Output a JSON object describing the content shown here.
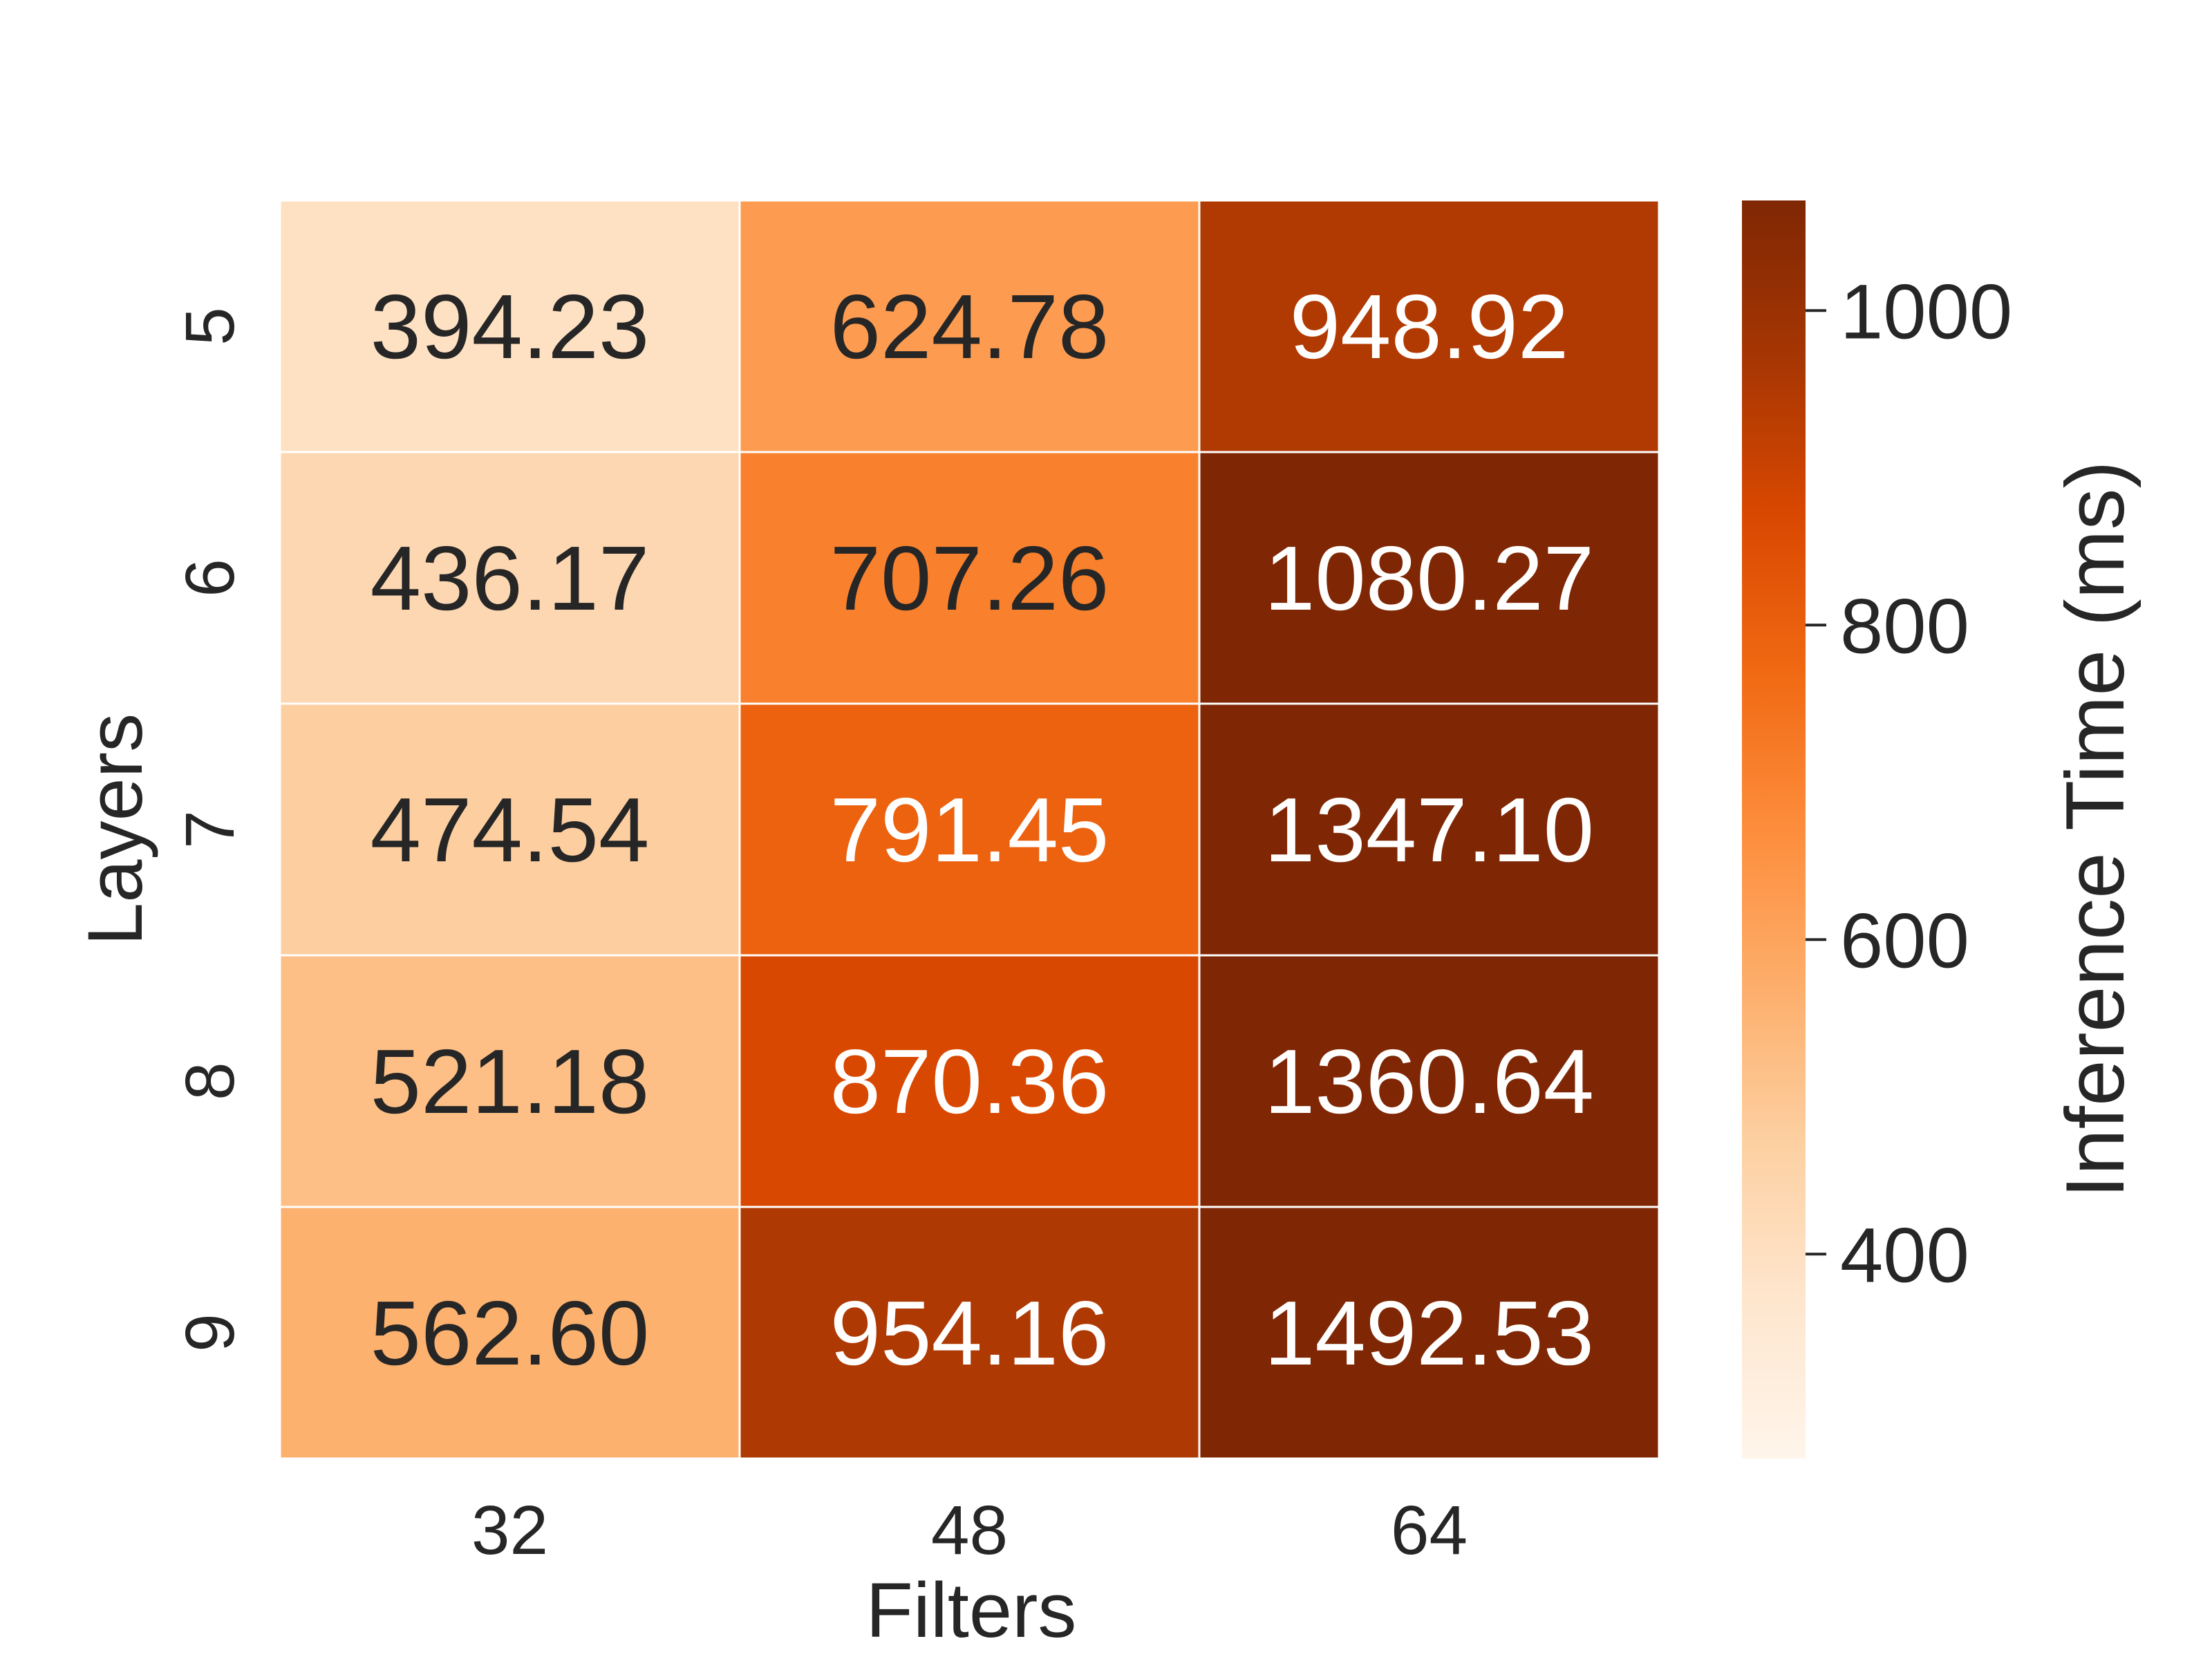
{
  "chart_data": {
    "type": "heatmap",
    "title": "",
    "xlabel": "Filters",
    "ylabel": "Layers",
    "x_categories": [
      "32",
      "48",
      "64"
    ],
    "y_categories": [
      "5",
      "6",
      "7",
      "8",
      "9"
    ],
    "values": [
      [
        394.23,
        624.78,
        948.92
      ],
      [
        436.17,
        707.26,
        1080.27
      ],
      [
        474.54,
        791.45,
        1347.1
      ],
      [
        521.18,
        870.36,
        1360.64
      ],
      [
        562.6,
        954.16,
        1492.53
      ]
    ],
    "value_labels": [
      [
        "394.23",
        "624.78",
        "948.92"
      ],
      [
        "436.17",
        "707.26",
        "1080.27"
      ],
      [
        "474.54",
        "791.45",
        "1347.10"
      ],
      [
        "521.18",
        "870.36",
        "1360.64"
      ],
      [
        "562.60",
        "954.16",
        "1492.53"
      ]
    ],
    "colorbar": {
      "label": "Inference Time (ms)",
      "range": [
        270,
        1070
      ],
      "ticks": [
        400,
        600,
        800,
        1000
      ],
      "tick_labels": [
        "400",
        "600",
        "800",
        "1000"
      ],
      "colormap": "Oranges",
      "color_stops": [
        "#fff5eb",
        "#fee6ce",
        "#fdd0a2",
        "#fdae6b",
        "#fd8d3c",
        "#f16913",
        "#d94801",
        "#a63603",
        "#7f2704"
      ]
    },
    "grid_line_color": "#ffffff",
    "label_colors": {
      "dark": "#262626",
      "light": "#ffffff"
    }
  }
}
